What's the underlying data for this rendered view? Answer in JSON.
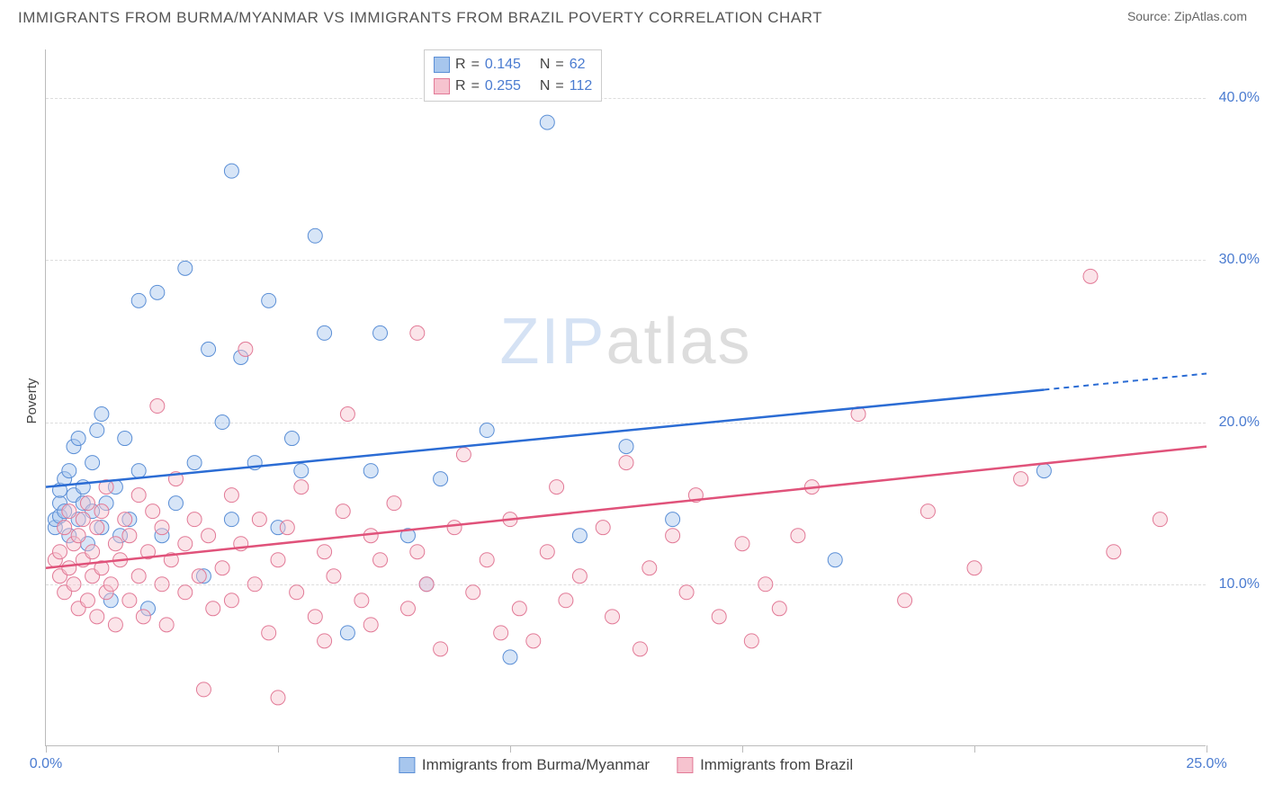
{
  "title": "IMMIGRANTS FROM BURMA/MYANMAR VS IMMIGRANTS FROM BRAZIL POVERTY CORRELATION CHART",
  "source_label": "Source:",
  "source_value": "ZipAtlas.com",
  "ylabel": "Poverty",
  "watermark_a": "ZIP",
  "watermark_b": "atlas",
  "chart": {
    "xlim": [
      0,
      25
    ],
    "ylim": [
      0,
      43
    ],
    "x_ticks": [
      0,
      5,
      10,
      15,
      20,
      25
    ],
    "x_tick_labels": [
      "0.0%",
      "",
      "",
      "",
      "",
      "25.0%"
    ],
    "y_gridlines": [
      10,
      20,
      30,
      40
    ],
    "y_tick_labels": [
      "10.0%",
      "20.0%",
      "30.0%",
      "40.0%"
    ],
    "grid_color": "#dddddd",
    "axis_color": "#bbbbbb",
    "tick_label_color": "#4a7bd0",
    "marker_radius": 8,
    "marker_opacity": 0.45,
    "series": [
      {
        "name": "Immigrants from Burma/Myanmar",
        "fill": "#a7c6ed",
        "stroke": "#5b8fd6",
        "line_color": "#2b6cd4",
        "R": "0.145",
        "N": "62",
        "trend": {
          "x1": 0,
          "y1": 16.0,
          "x2": 21.5,
          "y2": 22.0,
          "dash_x2": 25,
          "dash_y2": 23.0
        },
        "points": [
          [
            0.2,
            13.5
          ],
          [
            0.2,
            14.0
          ],
          [
            0.3,
            14.2
          ],
          [
            0.3,
            15.0
          ],
          [
            0.3,
            15.8
          ],
          [
            0.4,
            14.5
          ],
          [
            0.4,
            16.5
          ],
          [
            0.5,
            13.0
          ],
          [
            0.5,
            17.0
          ],
          [
            0.6,
            15.5
          ],
          [
            0.6,
            18.5
          ],
          [
            0.7,
            14.0
          ],
          [
            0.7,
            19.0
          ],
          [
            0.8,
            15.0
          ],
          [
            0.8,
            16.0
          ],
          [
            0.9,
            12.5
          ],
          [
            1.0,
            17.5
          ],
          [
            1.0,
            14.5
          ],
          [
            1.1,
            19.5
          ],
          [
            1.2,
            13.5
          ],
          [
            1.2,
            20.5
          ],
          [
            1.3,
            15.0
          ],
          [
            1.4,
            9.0
          ],
          [
            1.5,
            16.0
          ],
          [
            1.6,
            13.0
          ],
          [
            1.7,
            19.0
          ],
          [
            1.8,
            14.0
          ],
          [
            2.0,
            17.0
          ],
          [
            2.0,
            27.5
          ],
          [
            2.2,
            8.5
          ],
          [
            2.4,
            28.0
          ],
          [
            2.5,
            13.0
          ],
          [
            2.8,
            15.0
          ],
          [
            3.0,
            29.5
          ],
          [
            3.2,
            17.5
          ],
          [
            3.4,
            10.5
          ],
          [
            3.5,
            24.5
          ],
          [
            3.8,
            20.0
          ],
          [
            4.0,
            14.0
          ],
          [
            4.0,
            35.5
          ],
          [
            4.2,
            24.0
          ],
          [
            4.5,
            17.5
          ],
          [
            4.8,
            27.5
          ],
          [
            5.0,
            13.5
          ],
          [
            5.3,
            19.0
          ],
          [
            5.5,
            17.0
          ],
          [
            5.8,
            31.5
          ],
          [
            6.0,
            25.5
          ],
          [
            6.5,
            7.0
          ],
          [
            7.0,
            17.0
          ],
          [
            7.2,
            25.5
          ],
          [
            7.8,
            13.0
          ],
          [
            8.2,
            10.0
          ],
          [
            8.5,
            16.5
          ],
          [
            9.5,
            19.5
          ],
          [
            10.0,
            5.5
          ],
          [
            10.8,
            38.5
          ],
          [
            11.5,
            13.0
          ],
          [
            12.5,
            18.5
          ],
          [
            13.5,
            14.0
          ],
          [
            17.0,
            11.5
          ],
          [
            21.5,
            17.0
          ]
        ]
      },
      {
        "name": "Immigrants from Brazil",
        "fill": "#f6c3cf",
        "stroke": "#e27a97",
        "line_color": "#e0527a",
        "R": "0.255",
        "N": "112",
        "trend": {
          "x1": 0,
          "y1": 11.0,
          "x2": 25,
          "y2": 18.5
        },
        "points": [
          [
            0.2,
            11.5
          ],
          [
            0.3,
            10.5
          ],
          [
            0.3,
            12.0
          ],
          [
            0.4,
            9.5
          ],
          [
            0.4,
            13.5
          ],
          [
            0.5,
            11.0
          ],
          [
            0.5,
            14.5
          ],
          [
            0.6,
            10.0
          ],
          [
            0.6,
            12.5
          ],
          [
            0.7,
            8.5
          ],
          [
            0.7,
            13.0
          ],
          [
            0.8,
            11.5
          ],
          [
            0.8,
            14.0
          ],
          [
            0.9,
            9.0
          ],
          [
            0.9,
            15.0
          ],
          [
            1.0,
            10.5
          ],
          [
            1.0,
            12.0
          ],
          [
            1.1,
            8.0
          ],
          [
            1.1,
            13.5
          ],
          [
            1.2,
            11.0
          ],
          [
            1.2,
            14.5
          ],
          [
            1.3,
            9.5
          ],
          [
            1.3,
            16.0
          ],
          [
            1.4,
            10.0
          ],
          [
            1.5,
            12.5
          ],
          [
            1.5,
            7.5
          ],
          [
            1.6,
            11.5
          ],
          [
            1.7,
            14.0
          ],
          [
            1.8,
            9.0
          ],
          [
            1.8,
            13.0
          ],
          [
            2.0,
            10.5
          ],
          [
            2.0,
            15.5
          ],
          [
            2.1,
            8.0
          ],
          [
            2.2,
            12.0
          ],
          [
            2.3,
            14.5
          ],
          [
            2.4,
            21.0
          ],
          [
            2.5,
            10.0
          ],
          [
            2.5,
            13.5
          ],
          [
            2.6,
            7.5
          ],
          [
            2.7,
            11.5
          ],
          [
            2.8,
            16.5
          ],
          [
            3.0,
            9.5
          ],
          [
            3.0,
            12.5
          ],
          [
            3.2,
            14.0
          ],
          [
            3.3,
            10.5
          ],
          [
            3.4,
            3.5
          ],
          [
            3.5,
            13.0
          ],
          [
            3.6,
            8.5
          ],
          [
            3.8,
            11.0
          ],
          [
            4.0,
            15.5
          ],
          [
            4.0,
            9.0
          ],
          [
            4.2,
            12.5
          ],
          [
            4.3,
            24.5
          ],
          [
            4.5,
            10.0
          ],
          [
            4.6,
            14.0
          ],
          [
            4.8,
            7.0
          ],
          [
            5.0,
            11.5
          ],
          [
            5.0,
            3.0
          ],
          [
            5.2,
            13.5
          ],
          [
            5.4,
            9.5
          ],
          [
            5.5,
            16.0
          ],
          [
            5.8,
            8.0
          ],
          [
            6.0,
            12.0
          ],
          [
            6.0,
            6.5
          ],
          [
            6.2,
            10.5
          ],
          [
            6.4,
            14.5
          ],
          [
            6.5,
            20.5
          ],
          [
            6.8,
            9.0
          ],
          [
            7.0,
            13.0
          ],
          [
            7.0,
            7.5
          ],
          [
            7.2,
            11.5
          ],
          [
            7.5,
            15.0
          ],
          [
            7.8,
            8.5
          ],
          [
            8.0,
            12.0
          ],
          [
            8.0,
            25.5
          ],
          [
            8.2,
            10.0
          ],
          [
            8.5,
            6.0
          ],
          [
            8.8,
            13.5
          ],
          [
            9.0,
            18.0
          ],
          [
            9.2,
            9.5
          ],
          [
            9.5,
            11.5
          ],
          [
            9.8,
            7.0
          ],
          [
            10.0,
            14.0
          ],
          [
            10.2,
            8.5
          ],
          [
            10.5,
            6.5
          ],
          [
            10.8,
            12.0
          ],
          [
            11.0,
            16.0
          ],
          [
            11.2,
            9.0
          ],
          [
            11.5,
            10.5
          ],
          [
            12.0,
            13.5
          ],
          [
            12.2,
            8.0
          ],
          [
            12.5,
            17.5
          ],
          [
            12.8,
            6.0
          ],
          [
            13.0,
            11.0
          ],
          [
            13.5,
            13.0
          ],
          [
            13.8,
            9.5
          ],
          [
            14.0,
            15.5
          ],
          [
            14.5,
            8.0
          ],
          [
            15.0,
            12.5
          ],
          [
            15.2,
            6.5
          ],
          [
            15.5,
            10.0
          ],
          [
            15.8,
            8.5
          ],
          [
            16.2,
            13.0
          ],
          [
            16.5,
            16.0
          ],
          [
            17.5,
            20.5
          ],
          [
            18.5,
            9.0
          ],
          [
            19.0,
            14.5
          ],
          [
            20.0,
            11.0
          ],
          [
            22.5,
            29.0
          ],
          [
            21.0,
            16.5
          ],
          [
            23.0,
            12.0
          ],
          [
            24.0,
            14.0
          ]
        ]
      }
    ]
  },
  "legend_top": {
    "R_label": "R",
    "N_label": "N",
    "eq": "="
  }
}
